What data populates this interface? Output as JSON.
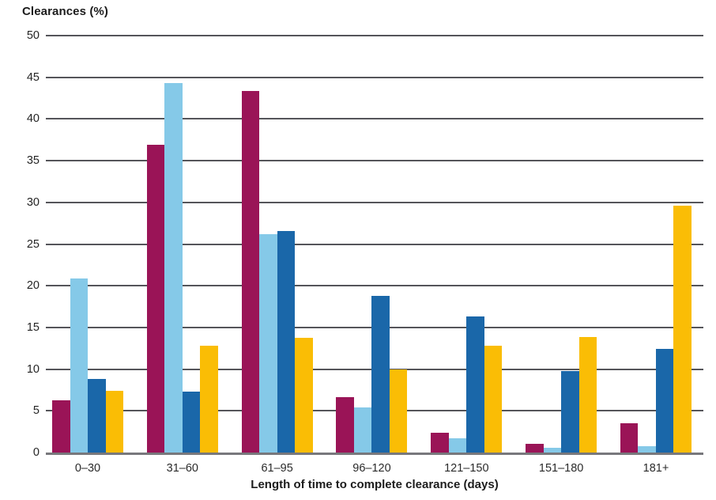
{
  "title": "Clearances (%)",
  "chart_data": {
    "type": "bar",
    "title": "Clearances (%)",
    "xlabel": "Length of time to complete clearance (days)",
    "ylabel": "Clearances (%)",
    "ylim": [
      0,
      50
    ],
    "yticks": [
      0,
      5,
      10,
      15,
      20,
      25,
      30,
      35,
      40,
      45,
      50
    ],
    "grid": true,
    "legend_position": "none",
    "grid_color": "#55555a",
    "axis_line_color": "#78787c",
    "categories": [
      "0–30",
      "31–60",
      "61–95",
      "96–120",
      "121–150",
      "151–180",
      "181+"
    ],
    "series": [
      {
        "name": "maroon",
        "color": "#9a1457",
        "values": [
          6.3,
          36.9,
          43.4,
          6.6,
          2.4,
          1.0,
          3.5
        ]
      },
      {
        "name": "light-blue",
        "color": "#85c9e8",
        "values": [
          20.9,
          44.3,
          26.2,
          5.4,
          1.7,
          0.6,
          0.8
        ]
      },
      {
        "name": "dark-blue",
        "color": "#1a67a9",
        "values": [
          8.8,
          7.3,
          26.6,
          18.8,
          16.3,
          9.8,
          12.4
        ]
      },
      {
        "name": "yellow",
        "color": "#fabd05",
        "values": [
          7.4,
          12.8,
          13.8,
          10.0,
          12.8,
          13.9,
          29.6
        ]
      }
    ]
  }
}
